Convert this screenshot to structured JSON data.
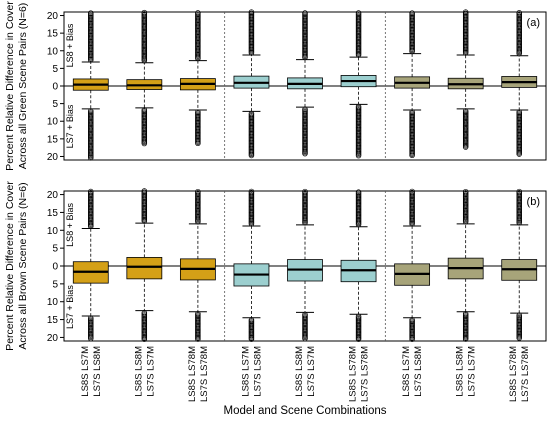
{
  "chart_data": {
    "type": "boxplot",
    "x_axis_title": "Model and Scene Combinations",
    "categories": [
      [
        "LS8S LS7M",
        "LS7S LS8M"
      ],
      [
        "LS8S LS8M",
        "LS7S LS7M"
      ],
      [
        "LS8S LS78M",
        "LS7S LS78M"
      ],
      [
        "LS8S LS7M",
        "LS7S LS8M"
      ],
      [
        "LS8S LS8M",
        "LS7S LS7M"
      ],
      [
        "LS8S LS78M",
        "LS7S LS78M"
      ],
      [
        "LS8S LS7M",
        "LS7S LS8M"
      ],
      [
        "LS8S LS8M",
        "LS7S LS7M"
      ],
      [
        "LS8S LS78M",
        "LS7S LS78M"
      ]
    ],
    "group_colors": [
      "#d4a017",
      "#9ccfcf",
      "#a7a47a"
    ],
    "panels": [
      {
        "tag": "(a)",
        "ylabel_line1": "Percent Relative Difference in Cover",
        "ylabel_line2": "Across all Green Scene Pairs (N=6)",
        "upper_label": "LS8 + Bias",
        "lower_label": "LS7 + Bias",
        "yticks": [
          "20",
          "15",
          "10",
          "5",
          "0",
          "5",
          "10",
          "15",
          "20"
        ],
        "ylim": [
          -21,
          21
        ],
        "boxes": [
          {
            "q1": -1.2,
            "median": 0.4,
            "q3": 2.0,
            "wlo": -6.5,
            "whi": 6.8,
            "out_lo": -20.5,
            "out_hi": 21
          },
          {
            "q1": -1.0,
            "median": 0.2,
            "q3": 1.8,
            "wlo": -6.2,
            "whi": 6.6,
            "out_lo": -16.5,
            "out_hi": 21
          },
          {
            "q1": -1.1,
            "median": 0.6,
            "q3": 2.1,
            "wlo": -6.8,
            "whi": 7.2,
            "out_lo": -16.5,
            "out_hi": 21
          },
          {
            "q1": -0.6,
            "median": 0.9,
            "q3": 2.8,
            "wlo": -7.2,
            "whi": 8.8,
            "out_lo": -20.0,
            "out_hi": 21
          },
          {
            "q1": -0.8,
            "median": 0.6,
            "q3": 2.3,
            "wlo": -6.0,
            "whi": 7.5,
            "out_lo": -19.5,
            "out_hi": 21
          },
          {
            "q1": -0.2,
            "median": 1.4,
            "q3": 3.0,
            "wlo": -5.2,
            "whi": 8.2,
            "out_lo": -19.8,
            "out_hi": 21
          },
          {
            "q1": -0.6,
            "median": 0.9,
            "q3": 2.6,
            "wlo": -6.8,
            "whi": 9.2,
            "out_lo": -20.0,
            "out_hi": 21
          },
          {
            "q1": -0.8,
            "median": 0.5,
            "q3": 2.2,
            "wlo": -6.5,
            "whi": 8.8,
            "out_lo": -17.5,
            "out_hi": 21
          },
          {
            "q1": -0.4,
            "median": 1.1,
            "q3": 2.7,
            "wlo": -6.8,
            "whi": 8.6,
            "out_lo": -19.5,
            "out_hi": 21
          }
        ]
      },
      {
        "tag": "(b)",
        "ylabel_line1": "Percent Relative Difference in Cover",
        "ylabel_line2": "Across all Brown Scene Pairs (N=6)",
        "upper_label": "LS8 + Bias",
        "lower_label": "LS7 + Bias",
        "yticks": [
          "20",
          "15",
          "10",
          "5",
          "0",
          "5",
          "10",
          "15",
          "20"
        ],
        "ylim": [
          -21,
          21
        ],
        "boxes": [
          {
            "q1": -4.8,
            "median": -1.6,
            "q3": 1.2,
            "wlo": -14.0,
            "whi": 10.5,
            "out_lo": -20.5,
            "out_hi": 21
          },
          {
            "q1": -3.6,
            "median": -0.2,
            "q3": 2.4,
            "wlo": -12.5,
            "whi": 12.0,
            "out_lo": -20.5,
            "out_hi": 21
          },
          {
            "q1": -3.9,
            "median": -0.8,
            "q3": 2.0,
            "wlo": -12.8,
            "whi": 11.8,
            "out_lo": -20.5,
            "out_hi": 21
          },
          {
            "q1": -5.6,
            "median": -2.4,
            "q3": 0.6,
            "wlo": -14.5,
            "whi": 11.2,
            "out_lo": -20.5,
            "out_hi": 21
          },
          {
            "q1": -4.2,
            "median": -1.0,
            "q3": 1.8,
            "wlo": -13.0,
            "whi": 11.5,
            "out_lo": -20.5,
            "out_hi": 21
          },
          {
            "q1": -4.4,
            "median": -1.2,
            "q3": 1.6,
            "wlo": -13.5,
            "whi": 11.0,
            "out_lo": -20.5,
            "out_hi": 21
          },
          {
            "q1": -5.4,
            "median": -2.2,
            "q3": 0.6,
            "wlo": -14.5,
            "whi": 11.2,
            "out_lo": -20.5,
            "out_hi": 21
          },
          {
            "q1": -3.6,
            "median": -0.6,
            "q3": 2.2,
            "wlo": -12.8,
            "whi": 11.8,
            "out_lo": -20.5,
            "out_hi": 21
          },
          {
            "q1": -4.0,
            "median": -0.9,
            "q3": 1.8,
            "wlo": -13.2,
            "whi": 11.5,
            "out_lo": -20.5,
            "out_hi": 21
          }
        ]
      }
    ]
  }
}
